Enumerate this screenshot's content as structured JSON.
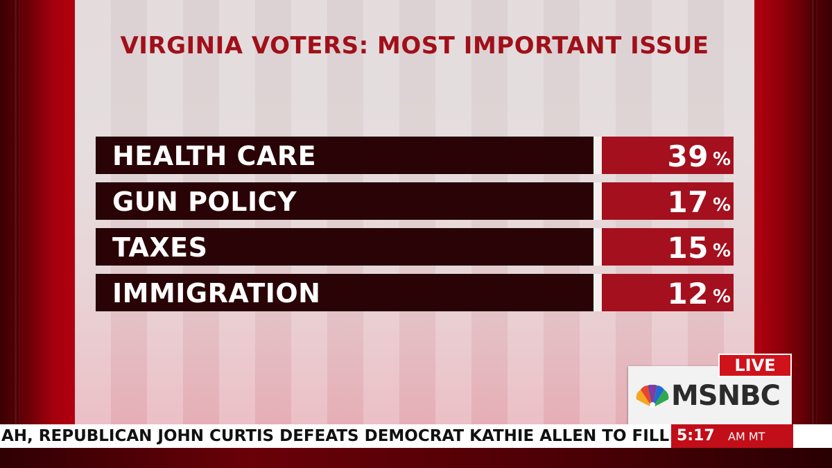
{
  "graphic": {
    "title": "VIRGINIA VOTERS: MOST IMPORTANT ISSUE",
    "rows": [
      {
        "label": "HEALTH CARE",
        "value": "39",
        "unit": "%"
      },
      {
        "label": "GUN POLICY",
        "value": "17",
        "unit": "%"
      },
      {
        "label": "TAXES",
        "value": "15",
        "unit": "%"
      },
      {
        "label": "IMMIGRATION",
        "value": "12",
        "unit": "%"
      }
    ]
  },
  "network": {
    "live_label": "LIVE",
    "name": "MSNBC",
    "logo_icon": "peacock-icon"
  },
  "ticker": {
    "text": "AH, REPUBLICAN JOHN CURTIS DEFEATS DEMOCRAT KATHIE ALLEN TO FILL THE R",
    "time": "5:17",
    "zone": "AM MT"
  },
  "colors": {
    "title": "#a0101a",
    "label_bar": "#2a0306",
    "value_bar": "#a4101e",
    "live": "#d0121b"
  }
}
